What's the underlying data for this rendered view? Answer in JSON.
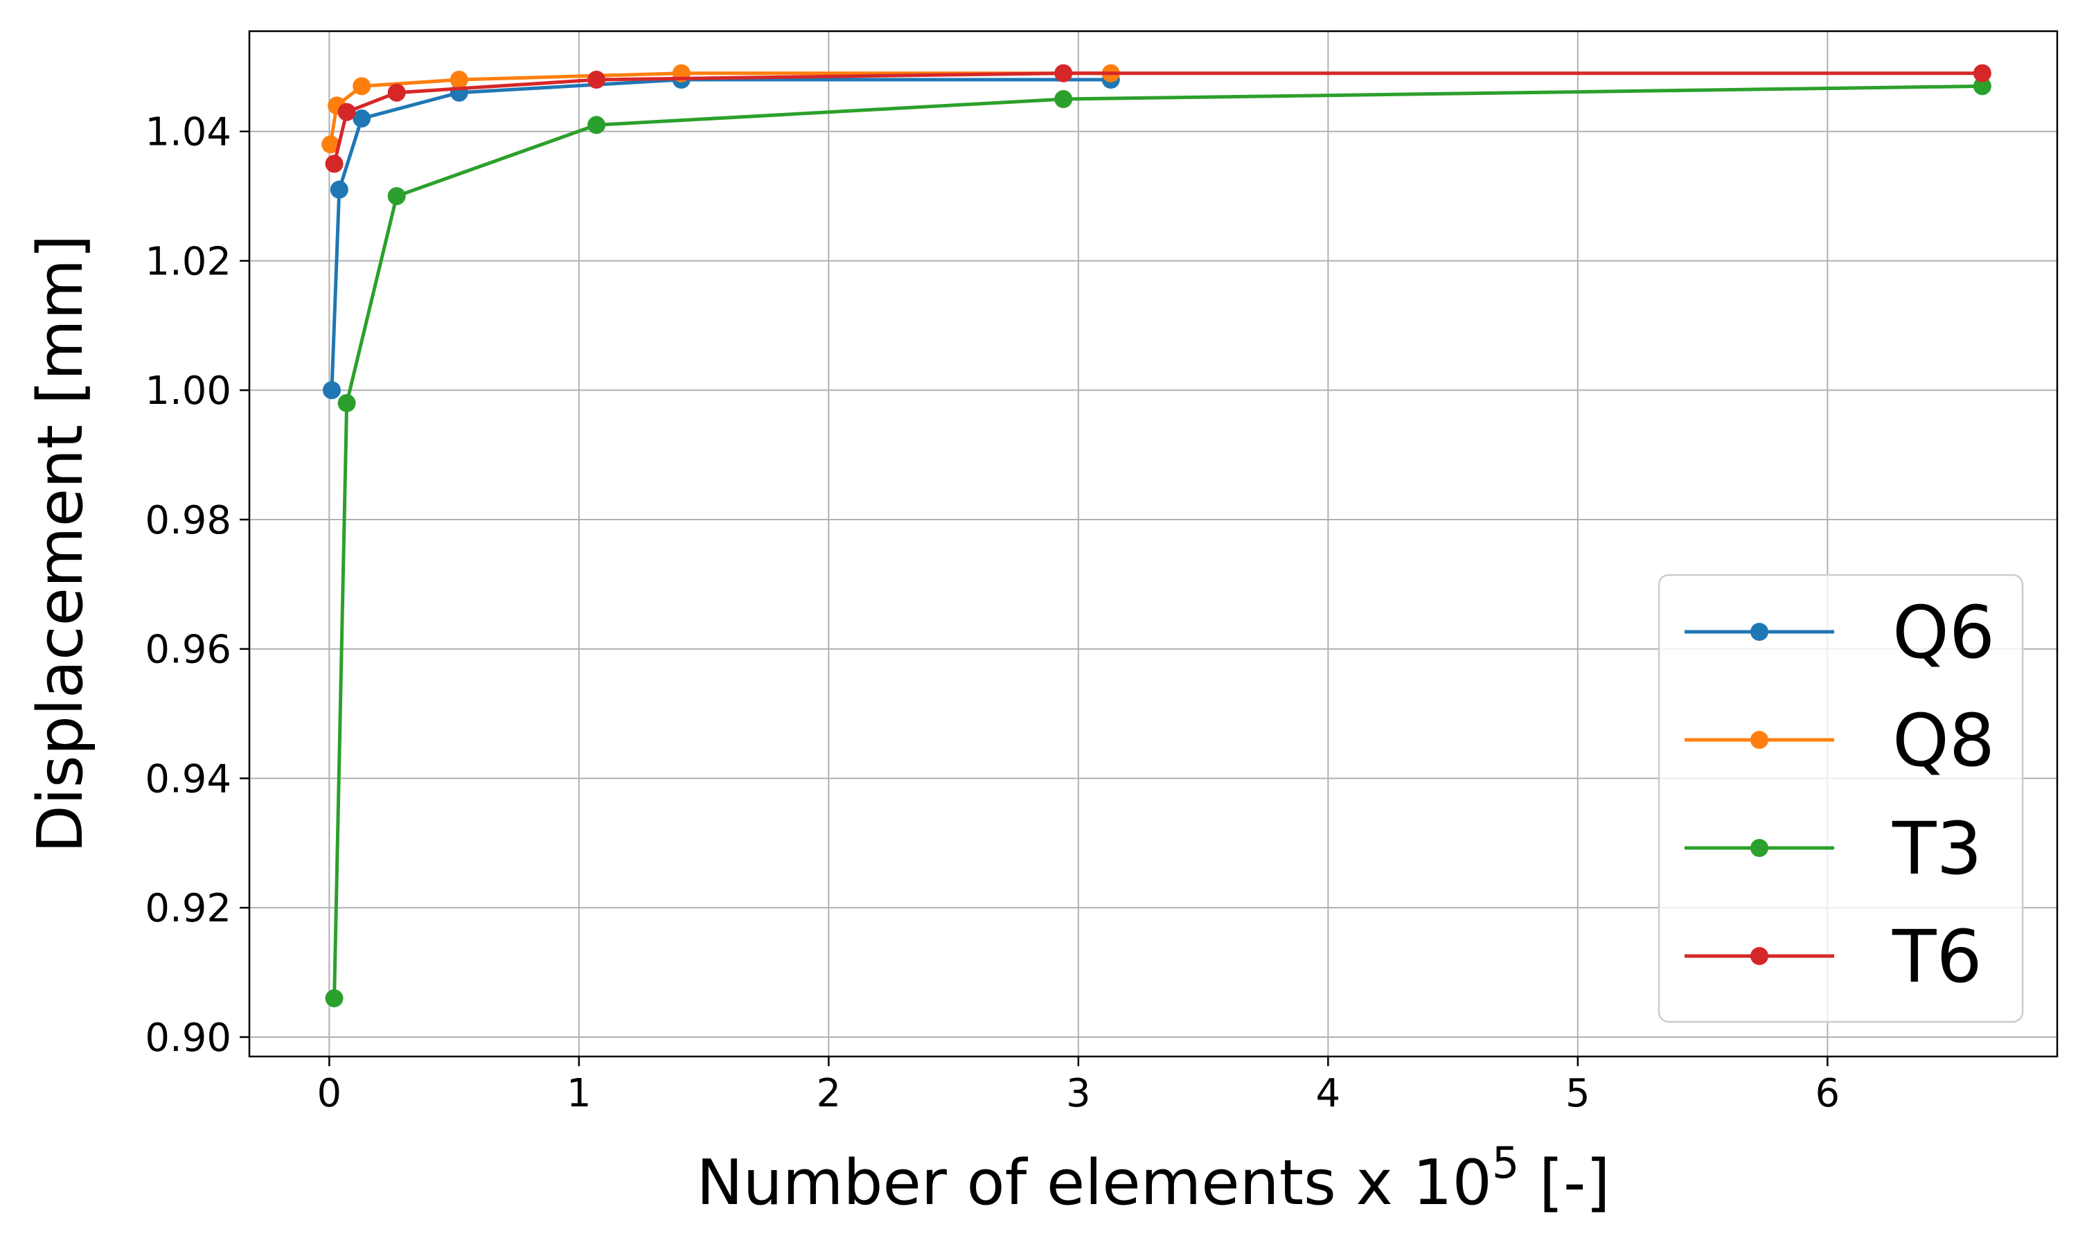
{
  "chart_data": {
    "type": "line",
    "xlabel": "Number of elements x 10",
    "xlabel_superscript": "5",
    "xlabel_suffix": " [-]",
    "ylabel": "Displacement [mm]",
    "xlim": [
      -0.32,
      6.92
    ],
    "ylim": [
      0.897,
      1.0555
    ],
    "xticks": [
      0,
      1,
      2,
      3,
      4,
      5,
      6
    ],
    "yticks": [
      0.9,
      0.92,
      0.94,
      0.96,
      0.98,
      1.0,
      1.02,
      1.04
    ],
    "grid": true,
    "legend_position": "lower-right",
    "series": [
      {
        "name": "Q6",
        "color": "#1f77b4",
        "x": [
          0.01,
          0.04,
          0.13,
          0.52,
          1.41,
          3.13
        ],
        "y": [
          1.0,
          1.031,
          1.042,
          1.046,
          1.048,
          1.048
        ]
      },
      {
        "name": "Q8",
        "color": "#ff7f0e",
        "x": [
          0.005,
          0.03,
          0.13,
          0.52,
          1.41,
          3.13
        ],
        "y": [
          1.038,
          1.044,
          1.047,
          1.048,
          1.049,
          1.049
        ]
      },
      {
        "name": "T3",
        "color": "#2ca02c",
        "x": [
          0.02,
          0.07,
          0.27,
          1.07,
          2.94,
          6.62
        ],
        "y": [
          0.906,
          0.998,
          1.03,
          1.041,
          1.045,
          1.047
        ]
      },
      {
        "name": "T6",
        "color": "#d62728",
        "x": [
          0.02,
          0.07,
          0.27,
          1.07,
          2.94,
          6.62
        ],
        "y": [
          1.035,
          1.043,
          1.046,
          1.048,
          1.049,
          1.049
        ]
      }
    ]
  }
}
